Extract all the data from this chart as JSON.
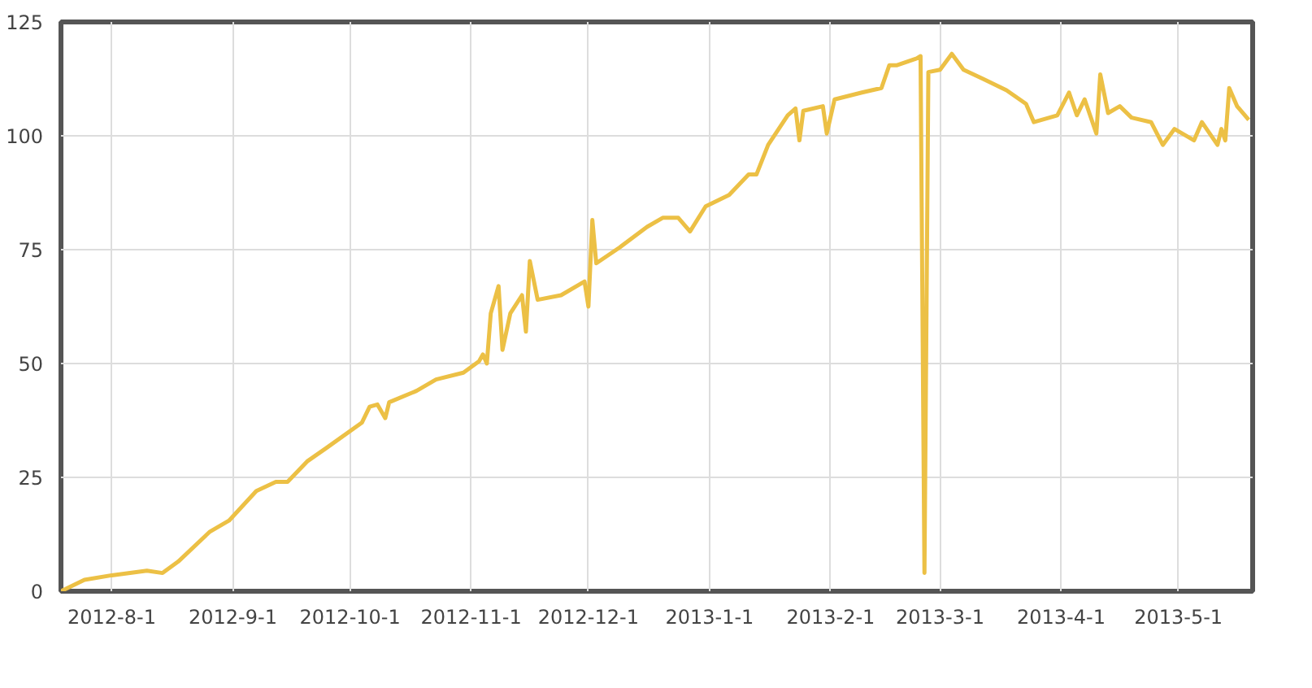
{
  "chart_data": {
    "type": "line",
    "x": [
      "2012-07-19",
      "2012-07-25",
      "2012-08-01",
      "2012-08-10",
      "2012-08-14",
      "2012-08-18",
      "2012-08-26",
      "2012-08-31",
      "2012-09-07",
      "2012-09-12",
      "2012-09-15",
      "2012-09-20",
      "2012-09-25",
      "2012-10-04",
      "2012-10-06",
      "2012-10-08",
      "2012-10-10",
      "2012-10-11",
      "2012-10-18",
      "2012-10-23",
      "2012-10-30",
      "2012-11-03",
      "2012-11-04",
      "2012-11-05",
      "2012-11-06",
      "2012-11-08",
      "2012-11-09",
      "2012-11-11",
      "2012-11-14",
      "2012-11-15",
      "2012-11-16",
      "2012-11-18",
      "2012-11-24",
      "2012-11-30",
      "2012-12-01",
      "2012-12-02",
      "2012-12-03",
      "2012-12-09",
      "2012-12-16",
      "2012-12-20",
      "2012-12-24",
      "2012-12-27",
      "2012-12-31",
      "2013-01-06",
      "2013-01-11",
      "2013-01-13",
      "2013-01-16",
      "2013-01-21",
      "2013-01-23",
      "2013-01-24",
      "2013-01-25",
      "2013-01-30",
      "2013-01-31",
      "2013-02-02",
      "2013-02-09",
      "2013-02-14",
      "2013-02-16",
      "2013-02-18",
      "2013-02-23",
      "2013-02-24",
      "2013-02-25",
      "2013-02-26",
      "2013-03-01",
      "2013-03-04",
      "2013-03-07",
      "2013-03-12",
      "2013-03-18",
      "2013-03-23",
      "2013-03-25",
      "2013-03-31",
      "2013-04-03",
      "2013-04-05",
      "2013-04-07",
      "2013-04-10",
      "2013-04-11",
      "2013-04-13",
      "2013-04-16",
      "2013-04-19",
      "2013-04-24",
      "2013-04-27",
      "2013-04-30",
      "2013-05-05",
      "2013-05-07",
      "2013-05-11",
      "2013-05-12",
      "2013-05-13",
      "2013-05-14",
      "2013-05-16",
      "2013-05-19"
    ],
    "series": [
      {
        "color": "#ecc045",
        "values": [
          0,
          2.5,
          3.5,
          4.5,
          4,
          6.5,
          13,
          15.5,
          22,
          24,
          24,
          28.5,
          31.5,
          37,
          40.5,
          41,
          38,
          41.5,
          44,
          46.5,
          48,
          50.5,
          52,
          50,
          61,
          67,
          53,
          61,
          65,
          57,
          72.5,
          64,
          65,
          68,
          62.5,
          81.5,
          72,
          75.5,
          80,
          82,
          82,
          79,
          84.5,
          87,
          91.5,
          91.5,
          98,
          104.5,
          106,
          99,
          105.5,
          106.5,
          100.5,
          108,
          109.5,
          110.5,
          115.5,
          115.5,
          117,
          117.5,
          4,
          114,
          114.5,
          118,
          114.5,
          112.5,
          110,
          107,
          103,
          104.5,
          109.5,
          104.5,
          108,
          100.5,
          113.5,
          105,
          106.5,
          104,
          103,
          98,
          101.5,
          99,
          103,
          98,
          101.5,
          99,
          110.5,
          106.5,
          103.5
        ]
      }
    ],
    "xlim": [
      "2012-07-19",
      "2013-05-20"
    ],
    "xticks": [
      {
        "value": "2012-08-01",
        "label": "2012-8-1"
      },
      {
        "value": "2012-09-01",
        "label": "2012-9-1"
      },
      {
        "value": "2012-10-01",
        "label": "2012-10-1"
      },
      {
        "value": "2012-11-01",
        "label": "2012-11-1"
      },
      {
        "value": "2012-12-01",
        "label": "2012-12-1"
      },
      {
        "value": "2013-01-01",
        "label": "2013-1-1"
      },
      {
        "value": "2013-02-01",
        "label": "2013-2-1"
      },
      {
        "value": "2013-03-01",
        "label": "2013-3-1"
      },
      {
        "value": "2013-04-01",
        "label": "2013-4-1"
      },
      {
        "value": "2013-05-01",
        "label": "2013-5-1"
      }
    ],
    "ylim": [
      0,
      125
    ],
    "yticks": [
      0,
      25,
      50,
      75,
      100,
      125
    ],
    "grid": true,
    "marker": "none",
    "line_style": "solid"
  }
}
